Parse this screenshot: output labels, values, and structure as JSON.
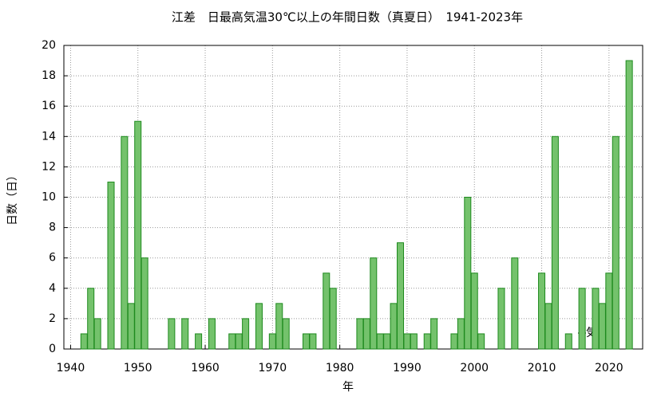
{
  "chart_data": {
    "type": "bar",
    "title": "江差　日最高気温30℃以上の年間日数（真夏日）　1941-2023年",
    "x_label": "年",
    "y_label": "日数（日）",
    "annotation": "気象庁",
    "x": [
      1941,
      1942,
      1943,
      1944,
      1945,
      1946,
      1947,
      1948,
      1949,
      1950,
      1951,
      1952,
      1953,
      1954,
      1955,
      1956,
      1957,
      1958,
      1959,
      1960,
      1961,
      1962,
      1963,
      1964,
      1965,
      1966,
      1967,
      1968,
      1969,
      1970,
      1971,
      1972,
      1973,
      1974,
      1975,
      1976,
      1977,
      1978,
      1979,
      1980,
      1981,
      1982,
      1983,
      1984,
      1985,
      1986,
      1987,
      1988,
      1989,
      1990,
      1991,
      1992,
      1993,
      1994,
      1995,
      1996,
      1997,
      1998,
      1999,
      2000,
      2001,
      2002,
      2003,
      2004,
      2005,
      2006,
      2007,
      2008,
      2009,
      2010,
      2011,
      2012,
      2013,
      2014,
      2015,
      2016,
      2017,
      2018,
      2019,
      2020,
      2021,
      2022,
      2023
    ],
    "values": [
      0,
      1,
      4,
      2,
      0,
      11,
      0,
      14,
      3,
      15,
      6,
      0,
      0,
      0,
      2,
      0,
      2,
      0,
      1,
      0,
      2,
      0,
      0,
      1,
      1,
      2,
      0,
      3,
      0,
      1,
      3,
      2,
      0,
      0,
      1,
      1,
      0,
      5,
      4,
      0,
      0,
      0,
      2,
      2,
      6,
      1,
      1,
      3,
      7,
      1,
      1,
      0,
      1,
      2,
      0,
      0,
      1,
      2,
      10,
      5,
      1,
      0,
      0,
      4,
      0,
      6,
      0,
      0,
      0,
      5,
      3,
      14,
      0,
      1,
      0,
      4,
      0,
      4,
      3,
      5,
      14,
      0,
      19
    ],
    "color": "#74c26c",
    "edge_color": "#1e8a1e",
    "xlim": [
      1939,
      2025
    ],
    "xticks": [
      1940,
      1950,
      1960,
      1970,
      1980,
      1990,
      2000,
      2010,
      2020
    ],
    "ylim": [
      0,
      20
    ],
    "yticks": [
      0,
      2,
      4,
      6,
      8,
      10,
      12,
      14,
      16,
      18,
      20
    ],
    "grid": true
  }
}
